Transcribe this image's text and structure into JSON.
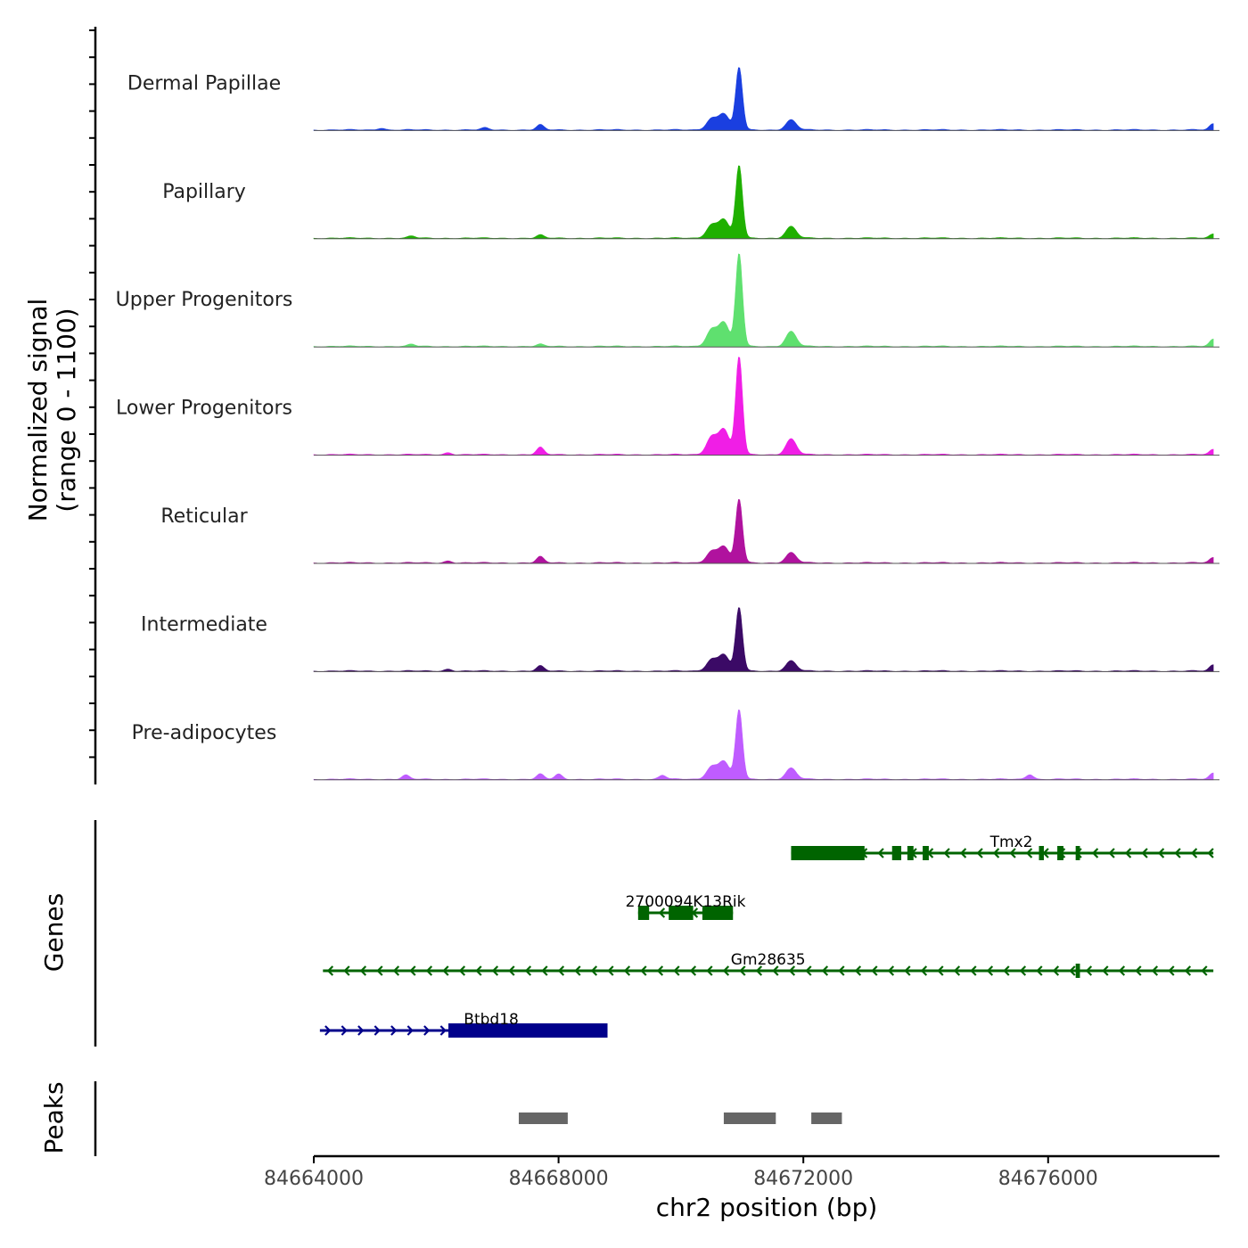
{
  "chart_data": {
    "type": "area",
    "title": "",
    "ylabel_line1": "Normalized signal",
    "ylabel_line2": "(range 0 - 1100)",
    "xlabel": "chr2 position (bp)",
    "xlim": [
      84664000,
      84678800
    ],
    "x_ticks": [
      84664000,
      84668000,
      84672000,
      84676000
    ],
    "x_tick_labels": [
      "84664000",
      "84668000",
      "84672000",
      "84676000"
    ],
    "y_range": [
      0,
      1100
    ],
    "tracks": [
      {
        "name": "Dermal Papillae",
        "color": "#1a3fe0",
        "scale": 0.62,
        "minor": [
          [
            84667700,
            0.05
          ],
          [
            84665100,
            0.02
          ],
          [
            84666800,
            0.02
          ],
          [
            84678700,
            0.06
          ]
        ]
      },
      {
        "name": "Papillary",
        "color": "#1fb000",
        "scale": 0.72,
        "minor": [
          [
            84667700,
            0.03
          ],
          [
            84665600,
            0.02
          ],
          [
            84678700,
            0.04
          ]
        ]
      },
      {
        "name": "Upper Progenitors",
        "color": "#5fe06f",
        "scale": 0.92,
        "minor": [
          [
            84667700,
            0.02
          ],
          [
            84665600,
            0.02
          ],
          [
            84678700,
            0.07
          ]
        ]
      },
      {
        "name": "Lower Progenitors",
        "color": "#f01ee6",
        "scale": 0.97,
        "minor": [
          [
            84667700,
            0.07
          ],
          [
            84666200,
            0.02
          ],
          [
            84678700,
            0.05
          ]
        ]
      },
      {
        "name": "Reticular",
        "color": "#b0129e",
        "scale": 0.63,
        "minor": [
          [
            84667700,
            0.06
          ],
          [
            84666200,
            0.02
          ],
          [
            84678700,
            0.05
          ]
        ]
      },
      {
        "name": "Intermediate",
        "color": "#3b0a66",
        "scale": 0.63,
        "minor": [
          [
            84667700,
            0.05
          ],
          [
            84666200,
            0.02
          ],
          [
            84678700,
            0.06
          ]
        ]
      },
      {
        "name": "Pre-adipocytes",
        "color": "#bf5cff",
        "scale": 0.69,
        "minor": [
          [
            84667700,
            0.05
          ],
          [
            84665500,
            0.04
          ],
          [
            84668000,
            0.05
          ],
          [
            84669700,
            0.04
          ],
          [
            84675700,
            0.05
          ],
          [
            84678700,
            0.06
          ]
        ]
      }
    ],
    "peak_profile": [
      [
        84670500,
        0.18
      ],
      [
        84670700,
        0.26
      ],
      [
        84670950,
        1.0
      ],
      [
        84671800,
        0.16
      ]
    ],
    "genes_label": "Genes",
    "genes": [
      {
        "name": "Tmx2",
        "strand": "-",
        "start": 84671800,
        "end": 84678700,
        "color": "#006400",
        "exons": [
          [
            84671800,
            84673000
          ],
          [
            84673450,
            84673600
          ],
          [
            84673700,
            84673800
          ],
          [
            84673950,
            84674050
          ],
          [
            84675850,
            84675930
          ],
          [
            84676150,
            84676250
          ],
          [
            84676450,
            84676520
          ]
        ]
      },
      {
        "name": "2700094K13Rik",
        "strand": "-",
        "start": 84669300,
        "end": 84670850,
        "color": "#006400",
        "exons": [
          [
            84669300,
            84669480
          ],
          [
            84669800,
            84670200
          ],
          [
            84670350,
            84670850
          ]
        ]
      },
      {
        "name": "Gm28635",
        "strand": "-",
        "start": 84664150,
        "end": 84678700,
        "color": "#006400",
        "exons": [
          [
            84676450,
            84676520
          ]
        ]
      },
      {
        "name": "Btbd18",
        "strand": "+",
        "start": 84664100,
        "end": 84668800,
        "color": "#00008b",
        "exons": [
          [
            84666200,
            84668800
          ]
        ]
      }
    ],
    "peaks_label": "Peaks",
    "peaks": [
      [
        84667350,
        84668150
      ],
      [
        84670700,
        84671550
      ],
      [
        84672130,
        84672630
      ]
    ],
    "peaks_color": "#666666"
  }
}
